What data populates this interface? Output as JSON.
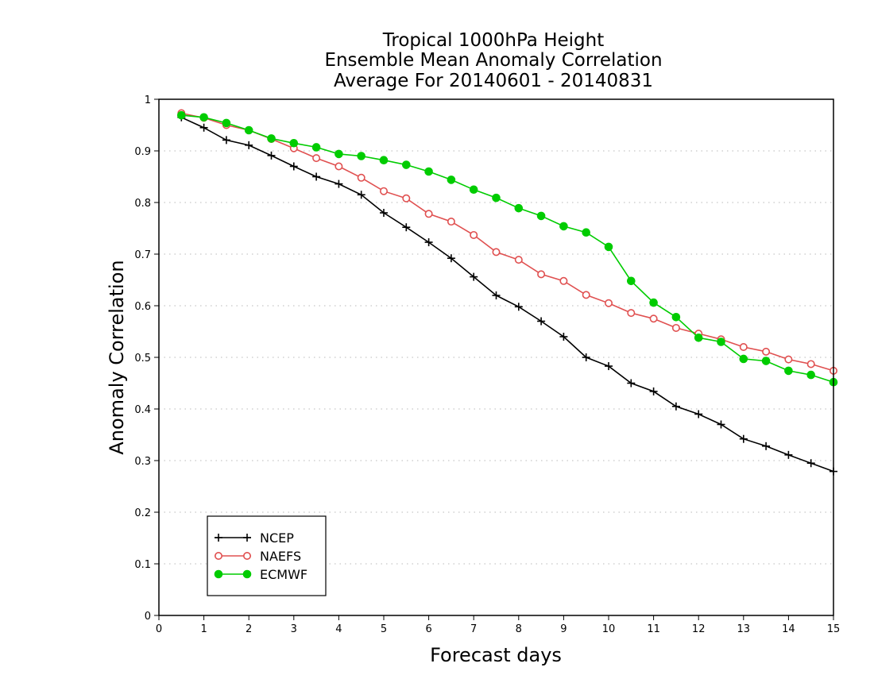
{
  "chart_data": {
    "type": "line",
    "title": [
      "Tropical 1000hPa Height",
      "Ensemble Mean Anomaly Correlation",
      "Average For 20140601 - 20140831"
    ],
    "xlabel": "Forecast days",
    "ylabel": "Anomaly Correlation",
    "xlim": [
      0,
      15
    ],
    "ylim": [
      0,
      1
    ],
    "xticks": [
      0,
      1,
      2,
      3,
      4,
      5,
      6,
      7,
      8,
      9,
      10,
      11,
      12,
      13,
      14,
      15
    ],
    "yticks": [
      0,
      0.1,
      0.2,
      0.3,
      0.4,
      0.5,
      0.6,
      0.7,
      0.8,
      0.9,
      1
    ],
    "ytick_labels": [
      "0",
      "0.1",
      "0.2",
      "0.3",
      "0.4",
      "0.5",
      "0.6",
      "0.7",
      "0.8",
      "0.9",
      "1"
    ],
    "grid": true,
    "legend_position": "bottom-left",
    "x": [
      0.5,
      1,
      1.5,
      2,
      2.5,
      3,
      3.5,
      4,
      4.5,
      5,
      5.5,
      6,
      6.5,
      7,
      7.5,
      8,
      8.5,
      9,
      9.5,
      10,
      10.5,
      11,
      11.5,
      12,
      12.5,
      13,
      13.5,
      14,
      14.5,
      15
    ],
    "series": [
      {
        "name": "NCEP",
        "color": "#000000",
        "marker": "plus",
        "values": [
          0.965,
          0.945,
          0.921,
          0.911,
          0.891,
          0.87,
          0.85,
          0.836,
          0.815,
          0.78,
          0.752,
          0.723,
          0.692,
          0.656,
          0.62,
          0.598,
          0.57,
          0.54,
          0.5,
          0.483,
          0.45,
          0.434,
          0.405,
          0.39,
          0.37,
          0.342,
          0.328,
          0.311,
          0.295,
          0.279
        ]
      },
      {
        "name": "NAEFS",
        "color": "#e05050",
        "marker": "open-circle",
        "values": [
          0.973,
          0.964,
          0.95,
          0.94,
          0.923,
          0.905,
          0.886,
          0.87,
          0.848,
          0.822,
          0.808,
          0.778,
          0.763,
          0.737,
          0.704,
          0.689,
          0.661,
          0.648,
          0.621,
          0.605,
          0.586,
          0.575,
          0.557,
          0.546,
          0.535,
          0.52,
          0.511,
          0.496,
          0.487,
          0.474
        ]
      },
      {
        "name": "ECMWF",
        "color": "#00cc00",
        "marker": "filled-circle",
        "values": [
          0.969,
          0.965,
          0.954,
          0.94,
          0.924,
          0.915,
          0.907,
          0.894,
          0.89,
          0.882,
          0.873,
          0.86,
          0.844,
          0.825,
          0.809,
          0.789,
          0.774,
          0.754,
          0.742,
          0.714,
          0.648,
          0.606,
          0.578,
          0.538,
          0.53,
          0.497,
          0.493,
          0.474,
          0.466,
          0.452
        ]
      }
    ]
  }
}
